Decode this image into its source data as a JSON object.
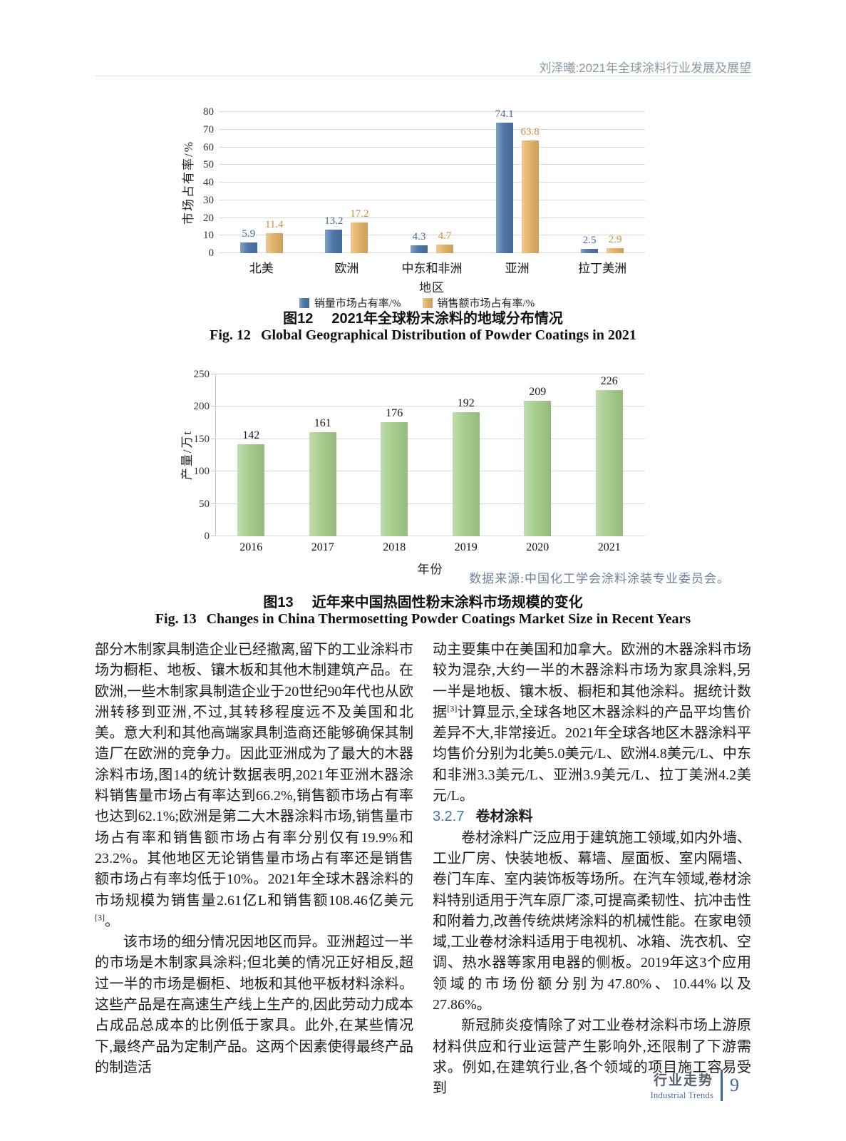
{
  "header": {
    "running_title": "刘泽曦:2021年全球涂料行业发展及展望"
  },
  "chart_data": [
    {
      "type": "bar",
      "title": "2021年全球粉末涂料的地域分布情况",
      "categories": [
        "北美",
        "欧洲",
        "中东和非洲",
        "亚洲",
        "拉丁美洲"
      ],
      "series": [
        {
          "name": "销量市场占有率/%",
          "color": "#4e76a8",
          "label_color": "#41699c",
          "values": [
            5.9,
            13.2,
            4.3,
            74.1,
            2.5
          ]
        },
        {
          "name": "销售额市场占有率/%",
          "color": "#e2b267",
          "label_color": "#c2923d",
          "values": [
            11.4,
            17.2,
            4.7,
            63.8,
            2.9
          ]
        }
      ],
      "xlabel": "地区",
      "ylabel": "市场占有率/%",
      "ylim": [
        0,
        80
      ],
      "ytick_step": 10,
      "grid": true,
      "legend_position": "bottom"
    },
    {
      "type": "bar",
      "title": "近年来中国热固性粉末涂料市场规模的变化",
      "categories": [
        "2016",
        "2017",
        "2018",
        "2019",
        "2020",
        "2021"
      ],
      "values": [
        142,
        161,
        176,
        192,
        209,
        226
      ],
      "color": "#a6cd8d",
      "xlabel": "年份",
      "ylabel": "产量/万t",
      "ylim": [
        0,
        250
      ],
      "ytick_step": 50,
      "grid": true,
      "source_note": "数据来源:中国化工学会涂料涂装专业委员会。"
    }
  ],
  "figures": {
    "fig12": {
      "caption_zh": {
        "label": "图12",
        "text": "2021年全球粉末涂料的地域分布情况"
      },
      "caption_en": {
        "label": "Fig. 12",
        "text": "Global Geographical Distribution of Powder Coatings in 2021"
      }
    },
    "fig13": {
      "caption_zh": {
        "label": "图13",
        "text": "近年来中国热固性粉末涂料市场规模的变化"
      },
      "caption_en": {
        "label": "Fig. 13",
        "text": "Changes in China Thermosetting Powder Coatings Market Size in Recent Years"
      }
    }
  },
  "body": {
    "columns": [
      {
        "blocks": [
          {
            "type": "para",
            "indent": false,
            "segments": [
              {
                "t": "部分木制家具制造企业已经撤离,留下的工业涂料市场为橱柜、地板、镶木板和其他木制建筑产品。在欧洲,一些木制家具制造企业于20世纪90年代也从欧洲转移到亚洲,不过,其转移程度远不及美国和北美。意大利和其他高端家具制造商还能够确保其制造厂在欧洲的竞争力。因此亚洲成为了最大的木器涂料市场,图14的统计数据表明,2021年亚洲木器涂料销售量市场占有率达到66.2%,销售额市场占有率也达到62.1%;欧洲是第二大木器涂料市场,销售量市场占有率和销售额市场占有率分别仅有19.9%和23.2%。其他地区无论销售量市场占有率还是销售额市场占有率均低于10%。2021年全球木器涂料的市场规模为销售量2.61亿L和销售额108.46亿美元"
              },
              {
                "t": "[3]",
                "sup": true
              },
              {
                "t": "。"
              }
            ]
          },
          {
            "type": "para",
            "indent": true,
            "segments": [
              {
                "t": "该市场的细分情况因地区而异。亚洲超过一半的市场是木制家具涂料;但北美的情况正好相反,超过一半的市场是橱柜、地板和其他平板材料涂料。这些产品是在高速生产线上生产的,因此劳动力成本占成品总成本的比例低于家具。此外,在某些情况下,最终产品为定制产品。这两个因素使得最终产品的制造活"
              }
            ]
          }
        ]
      },
      {
        "blocks": [
          {
            "type": "para",
            "indent": false,
            "segments": [
              {
                "t": "动主要集中在美国和加拿大。欧洲的木器涂料市场较为混杂,大约一半的木器涂料市场为家具涂料,另一半是地板、镶木板、橱柜和其他涂料。据统计数据"
              },
              {
                "t": "[3]",
                "sup": true
              },
              {
                "t": "计算显示,全球各地区木器涂料的产品平均售价差异不大,非常接近。2021年全球各地区木器涂料平均售价分别为北美5.0美元/L、欧洲4.8美元/L、中东和非洲3.3美元/L、亚洲3.9美元/L、拉丁美洲4.2美元/L。"
              }
            ]
          },
          {
            "type": "heading",
            "number": "3.2.7",
            "title": "卷材涂料"
          },
          {
            "type": "para",
            "indent": true,
            "segments": [
              {
                "t": "卷材涂料广泛应用于建筑施工领域,如内外墙、工业厂房、快装地板、幕墙、屋面板、室内隔墙、卷门车库、室内装饰板等场所。在汽车领域,卷材涂料特别适用于汽车原厂漆,可提高柔韧性、抗冲击性和附着力,改善传统烘烤涂料的机械性能。在家电领域,工业卷材涂料适用于电视机、冰箱、洗衣机、空调、热水器等家用电器的侧板。2019年这3个应用领域的市场份额分别为47.80%、10.44%以及27.86%。"
              }
            ]
          },
          {
            "type": "para",
            "indent": true,
            "segments": [
              {
                "t": "新冠肺炎疫情除了对工业卷材涂料市场上游原材料供应和行业运营产生影响外,还限制了下游需求。例如,在建筑行业,各个领域的项目施工容易受到"
              }
            ]
          }
        ]
      }
    ]
  },
  "footer": {
    "label_zh": "行业走势",
    "label_en": "Industrial Trends",
    "page_number": "9"
  }
}
